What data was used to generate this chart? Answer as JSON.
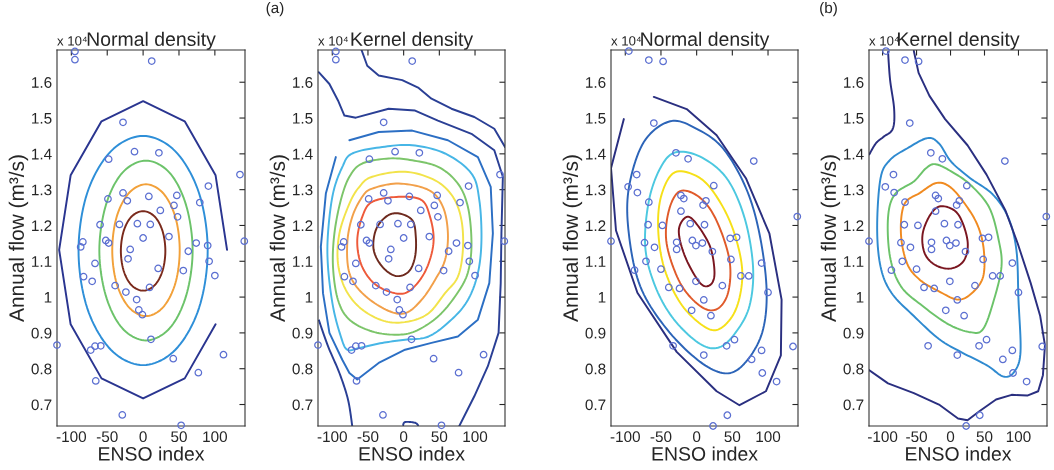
{
  "chart_data": [
    {
      "type": "scatter",
      "title": "Normal density",
      "xlabel": "ENSO index",
      "ylabel": "Annual flow (m³/s)",
      "annotations": [
        "x 10⁴"
      ],
      "xlim": [
        -120,
        142
      ],
      "ylim": [
        0.64,
        1.69
      ],
      "xticks": [
        -100,
        -50,
        0,
        50,
        100
      ],
      "yticks": [
        0.7,
        0.8,
        0.9,
        1,
        1.1,
        1.2,
        1.3,
        1.4,
        1.5,
        1.6
      ],
      "grid": false,
      "legend": false,
      "series": [
        {
          "type": "line",
          "color": "#2a3590",
          "x": [
            117,
            101,
            58,
            0,
            -58,
            -101,
            -117,
            -101,
            -58,
            0,
            58,
            101
          ],
          "values": [
            1.132,
            1.34,
            1.491,
            1.547,
            1.491,
            1.34,
            1.132,
            0.924,
            0.773,
            0.717,
            0.773,
            0.924
          ]
        },
        {
          "marker": "circle",
          "color": "#5b6fd1",
          "x": [
            -95,
            -95,
            12,
            -28,
            -48,
            -12,
            22,
            135,
            91,
            -28,
            -49,
            -22,
            8,
            47,
            24,
            43,
            79,
            48,
            -60,
            -33,
            -8,
            10,
            0,
            36,
            -84,
            -87,
            -52,
            -48,
            -18,
            -21,
            74,
            90,
            141,
            63,
            92,
            -67,
            -83,
            -71,
            21,
            56,
            100,
            -39,
            -24,
            9,
            -9,
            -6,
            -1,
            11,
            -120,
            -67,
            -59,
            -73,
            42,
            112,
            77,
            -66,
            -29,
            53
          ],
          "values": [
            1.686,
            1.663,
            1.659,
            1.488,
            1.385,
            1.406,
            1.403,
            1.342,
            1.31,
            1.291,
            1.274,
            1.269,
            1.281,
            1.284,
            1.242,
            1.256,
            1.264,
            1.224,
            1.202,
            1.203,
            1.205,
            1.203,
            1.165,
            1.169,
            1.154,
            1.14,
            1.158,
            1.151,
            1.133,
            1.107,
            1.151,
            1.144,
            1.156,
            1.128,
            1.1,
            1.094,
            1.057,
            1.044,
            1.08,
            1.074,
            1.06,
            1.032,
            1.014,
            1.027,
            0.993,
            0.964,
            0.951,
            0.882,
            0.866,
            0.863,
            0.864,
            0.852,
            0.828,
            0.839,
            0.789,
            0.766,
            0.671,
            0.642
          ]
        }
      ]
    },
    {
      "type": "scatter",
      "title": "Kernel density",
      "xlabel": "ENSO index",
      "ylabel": "Annual flow (m³/s)",
      "annotations": [
        "x 10⁴",
        "(a)"
      ],
      "xlim": [
        -120,
        142
      ],
      "ylim": [
        0.64,
        1.69
      ],
      "xticks": [
        -100,
        -50,
        0,
        50,
        100
      ],
      "yticks": [
        0.7,
        0.8,
        0.9,
        1,
        1.1,
        1.2,
        1.3,
        1.4,
        1.5,
        1.6
      ],
      "grid": false,
      "legend": false,
      "series": [
        {
          "type": "line",
          "color": "#2a3f95",
          "x": [
            -59,
            -51,
            -35,
            -2,
            21,
            39,
            67,
            99,
            127,
            142
          ],
          "values": [
            1.69,
            1.646,
            1.619,
            1.606,
            1.584,
            1.554,
            1.526,
            1.503,
            1.47,
            1.419
          ]
        },
        {
          "type": "line",
          "color": "#2a3f95",
          "x": [
            -119,
            -104,
            -92,
            -83,
            -67,
            -21,
            16,
            48,
            95,
            127,
            139,
            137,
            136,
            133,
            118,
            99,
            78
          ],
          "values": [
            1.628,
            1.595,
            1.549,
            1.507,
            1.501,
            1.526,
            1.521,
            1.493,
            1.456,
            1.41,
            1.336,
            1.178,
            1.039,
            0.9,
            0.807,
            0.723,
            0.64
          ]
        },
        {
          "type": "line",
          "color": "#2c6fc4",
          "x": [
            -76,
            -35,
            12,
            62,
            104,
            122,
            125,
            120,
            104,
            76,
            39,
            2,
            -35,
            -65,
            -76,
            -86,
            -104,
            -113,
            -116,
            -109,
            -95
          ],
          "values": [
            1.438,
            1.461,
            1.465,
            1.438,
            1.391,
            1.308,
            1.178,
            1.039,
            0.937,
            0.89,
            0.872,
            0.853,
            0.816,
            0.77,
            0.788,
            0.825,
            0.9,
            1.011,
            1.141,
            1.289,
            1.391
          ]
        },
        {
          "marker": "circle",
          "color": "#5b6fd1",
          "x": [
            -95,
            -95,
            12,
            -28,
            -48,
            -12,
            22,
            135,
            91,
            -28,
            -49,
            -22,
            8,
            47,
            24,
            43,
            79,
            48,
            -60,
            -33,
            -8,
            10,
            0,
            36,
            -84,
            -87,
            -52,
            -48,
            -18,
            -21,
            74,
            90,
            141,
            63,
            92,
            -67,
            -83,
            -71,
            21,
            56,
            100,
            -39,
            -24,
            9,
            -9,
            -6,
            -1,
            11,
            -120,
            -67,
            -59,
            -73,
            42,
            112,
            77,
            -66,
            -29,
            53
          ],
          "values": [
            1.686,
            1.663,
            1.659,
            1.488,
            1.385,
            1.406,
            1.403,
            1.342,
            1.31,
            1.291,
            1.274,
            1.269,
            1.281,
            1.284,
            1.242,
            1.256,
            1.264,
            1.224,
            1.202,
            1.203,
            1.205,
            1.203,
            1.165,
            1.169,
            1.154,
            1.14,
            1.158,
            1.151,
            1.133,
            1.107,
            1.151,
            1.144,
            1.156,
            1.128,
            1.1,
            1.094,
            1.057,
            1.044,
            1.08,
            1.074,
            1.06,
            1.032,
            1.014,
            1.027,
            0.993,
            0.964,
            0.951,
            0.882,
            0.866,
            0.863,
            0.864,
            0.852,
            0.828,
            0.839,
            0.789,
            0.766,
            0.671,
            0.642
          ]
        }
      ]
    },
    {
      "type": "scatter",
      "title": "Normal density",
      "xlabel": "ENSO index",
      "ylabel": "Annual flow (m³/s)",
      "annotations": [
        "x 10⁴"
      ],
      "xlim": [
        -120,
        142
      ],
      "ylim": [
        0.64,
        1.69
      ],
      "xticks": [
        -100,
        -50,
        0,
        50,
        100
      ],
      "yticks": [
        0.7,
        0.8,
        0.9,
        1,
        1.1,
        1.2,
        1.3,
        1.4,
        1.5,
        1.6
      ],
      "grid": false,
      "legend": false,
      "series": [
        {
          "type": "line",
          "color": "#2a2f80",
          "x": [
            -60,
            -14,
            28,
            69,
            102,
            119,
            118,
            97,
            60,
            28,
            -28,
            -83,
            -113,
            -120,
            -102
          ],
          "values": [
            1.559,
            1.525,
            1.452,
            1.332,
            1.177,
            0.993,
            0.837,
            0.737,
            0.698,
            0.737,
            0.847,
            1.012,
            1.186,
            1.36,
            1.497
          ]
        },
        {
          "marker": "circle",
          "color": "#5b6fd1",
          "x": [
            -95,
            -67,
            -47,
            -60,
            -29,
            -12,
            80,
            -84,
            -96,
            -83,
            24,
            -67,
            -22,
            -18,
            13,
            9,
            -22,
            141,
            -68,
            -48,
            -9,
            11,
            -73,
            -59,
            -28,
            -28,
            -6,
            -1,
            8,
            47,
            56,
            -120,
            22,
            -71,
            48,
            91,
            -87,
            -50,
            62,
            73,
            100,
            -39,
            -24,
            36,
            -1,
            10,
            -7,
            20,
            -33,
            42,
            53,
            10,
            91,
            77,
            92,
            135,
            112,
            43,
            23
          ],
          "values": [
            1.687,
            1.662,
            1.658,
            1.486,
            1.403,
            1.386,
            1.38,
            1.342,
            1.308,
            1.292,
            1.311,
            1.265,
            1.284,
            1.275,
            1.269,
            1.257,
            1.24,
            1.225,
            1.202,
            1.2,
            1.205,
            1.202,
            1.152,
            1.139,
            1.153,
            1.133,
            1.158,
            1.144,
            1.151,
            1.164,
            1.167,
            1.156,
            1.127,
            1.1,
            1.105,
            1.095,
            1.075,
            1.078,
            1.059,
            1.059,
            1.013,
            1.027,
            1.024,
            1.032,
            1.044,
            0.992,
            0.963,
            0.948,
            0.864,
            0.864,
            0.881,
            0.838,
            0.851,
            0.826,
            0.788,
            0.862,
            0.764,
            0.67,
            0.64
          ]
        }
      ]
    },
    {
      "type": "scatter",
      "title": "Kernel density",
      "xlabel": "ENSO index",
      "ylabel": "Annual flow (m³/s)",
      "annotations": [
        "x 10⁴",
        "(b)"
      ],
      "xlim": [
        -120,
        142
      ],
      "ylim": [
        0.64,
        1.69
      ],
      "xticks": [
        -100,
        -50,
        0,
        50,
        100
      ],
      "yticks": [
        0.7,
        0.8,
        0.9,
        1,
        1.1,
        1.2,
        1.3,
        1.4,
        1.5,
        1.6
      ],
      "grid": false,
      "legend": false,
      "series": [
        {
          "type": "line",
          "color": "#2a2f80",
          "x": [
            -54,
            -47,
            -31,
            -8,
            25,
            53,
            81,
            99,
            118,
            132,
            139,
            136,
            129,
            113,
            90,
            67,
            43,
            25,
            11,
            -17,
            -54,
            -92,
            -120
          ],
          "values": [
            1.687,
            1.626,
            1.562,
            1.497,
            1.424,
            1.342,
            1.241,
            1.149,
            1.039,
            0.947,
            0.865,
            0.782,
            0.737,
            0.725,
            0.727,
            0.714,
            0.682,
            0.656,
            0.661,
            0.7,
            0.732,
            0.759,
            0.796
          ]
        },
        {
          "marker": "circle",
          "color": "#5b6fd1",
          "x": [
            -95,
            -67,
            -47,
            -60,
            -29,
            -12,
            80,
            -84,
            -96,
            -83,
            24,
            -67,
            -22,
            -18,
            13,
            9,
            -22,
            141,
            -68,
            -48,
            -9,
            11,
            -73,
            -59,
            -28,
            -28,
            -6,
            -1,
            8,
            47,
            56,
            -120,
            22,
            -71,
            48,
            91,
            -87,
            -50,
            62,
            73,
            100,
            -39,
            -24,
            36,
            -1,
            10,
            -7,
            20,
            -33,
            42,
            53,
            10,
            91,
            77,
            92,
            135,
            112,
            43,
            23
          ],
          "values": [
            1.687,
            1.662,
            1.658,
            1.486,
            1.403,
            1.386,
            1.38,
            1.342,
            1.308,
            1.292,
            1.311,
            1.265,
            1.284,
            1.275,
            1.269,
            1.257,
            1.24,
            1.225,
            1.202,
            1.2,
            1.205,
            1.202,
            1.152,
            1.139,
            1.153,
            1.133,
            1.158,
            1.144,
            1.151,
            1.164,
            1.167,
            1.156,
            1.127,
            1.1,
            1.105,
            1.095,
            1.075,
            1.078,
            1.059,
            1.059,
            1.013,
            1.027,
            1.024,
            1.032,
            1.044,
            0.992,
            0.963,
            0.948,
            0.864,
            0.864,
            0.881,
            0.838,
            0.851,
            0.826,
            0.788,
            0.862,
            0.764,
            0.67,
            0.64
          ]
        }
      ]
    }
  ]
}
